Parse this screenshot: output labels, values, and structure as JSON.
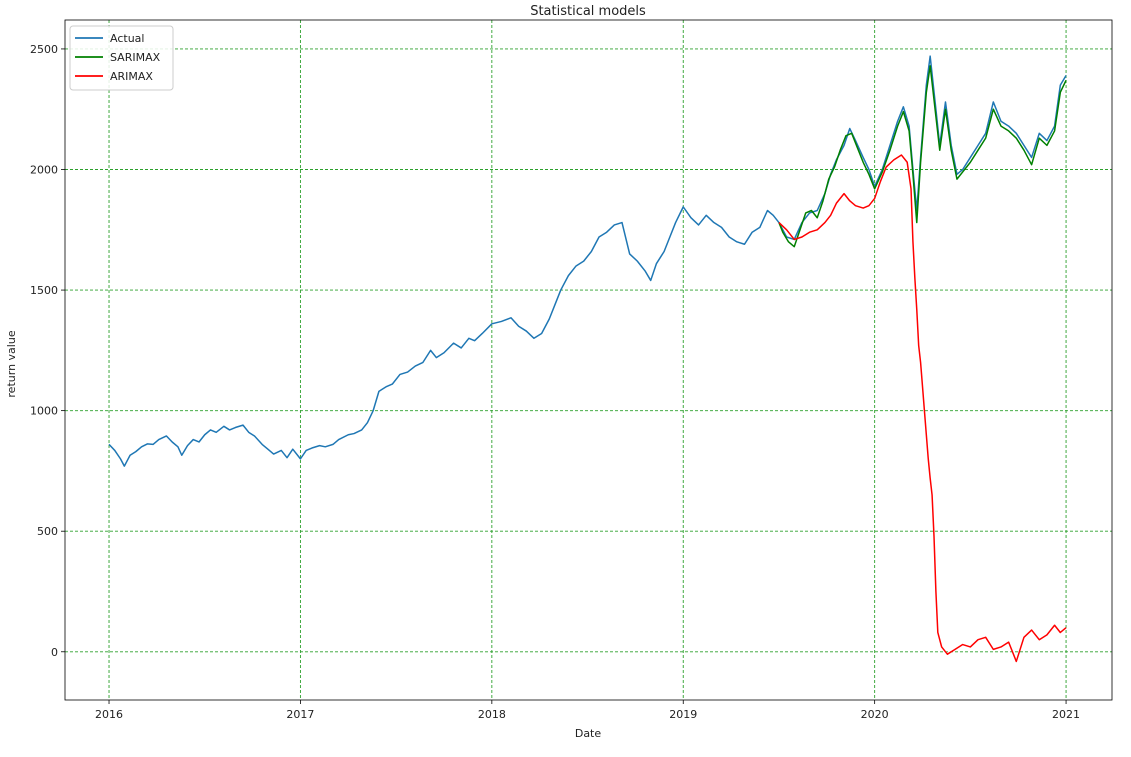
{
  "chart_data": {
    "type": "line",
    "title": "Statistical models",
    "xlabel": "Date",
    "ylabel": "return value",
    "xlim": [
      2015.77,
      2021.24
    ],
    "ylim": [
      -200,
      2620
    ],
    "x_ticks": [
      2016,
      2017,
      2018,
      2019,
      2020,
      2021
    ],
    "x_tick_labels": [
      "2016",
      "2017",
      "2018",
      "2019",
      "2020",
      "2021"
    ],
    "y_ticks": [
      0,
      500,
      1000,
      1500,
      2000,
      2500
    ],
    "y_tick_labels": [
      "0",
      "500",
      "1000",
      "1500",
      "2000",
      "2500"
    ],
    "grid": true,
    "grid_color": "#2ca02c",
    "legend_position": "top-left",
    "series": [
      {
        "name": "Actual",
        "color": "#1f77b4",
        "points": [
          [
            2016.0,
            860
          ],
          [
            2016.03,
            835
          ],
          [
            2016.06,
            800
          ],
          [
            2016.08,
            770
          ],
          [
            2016.11,
            815
          ],
          [
            2016.14,
            830
          ],
          [
            2016.17,
            850
          ],
          [
            2016.2,
            862
          ],
          [
            2016.23,
            860
          ],
          [
            2016.26,
            880
          ],
          [
            2016.3,
            895
          ],
          [
            2016.33,
            870
          ],
          [
            2016.36,
            850
          ],
          [
            2016.38,
            815
          ],
          [
            2016.41,
            855
          ],
          [
            2016.44,
            880
          ],
          [
            2016.47,
            870
          ],
          [
            2016.5,
            900
          ],
          [
            2016.53,
            920
          ],
          [
            2016.56,
            910
          ],
          [
            2016.6,
            935
          ],
          [
            2016.63,
            920
          ],
          [
            2016.66,
            930
          ],
          [
            2016.7,
            940
          ],
          [
            2016.73,
            910
          ],
          [
            2016.76,
            895
          ],
          [
            2016.8,
            860
          ],
          [
            2016.83,
            840
          ],
          [
            2016.86,
            820
          ],
          [
            2016.9,
            835
          ],
          [
            2016.93,
            805
          ],
          [
            2016.96,
            840
          ],
          [
            2017.0,
            800
          ],
          [
            2017.03,
            835
          ],
          [
            2017.06,
            845
          ],
          [
            2017.1,
            855
          ],
          [
            2017.13,
            850
          ],
          [
            2017.17,
            860
          ],
          [
            2017.2,
            880
          ],
          [
            2017.25,
            900
          ],
          [
            2017.28,
            905
          ],
          [
            2017.32,
            920
          ],
          [
            2017.35,
            950
          ],
          [
            2017.38,
            1000
          ],
          [
            2017.41,
            1080
          ],
          [
            2017.45,
            1100
          ],
          [
            2017.48,
            1110
          ],
          [
            2017.52,
            1150
          ],
          [
            2017.56,
            1160
          ],
          [
            2017.6,
            1185
          ],
          [
            2017.64,
            1200
          ],
          [
            2017.68,
            1250
          ],
          [
            2017.71,
            1220
          ],
          [
            2017.75,
            1240
          ],
          [
            2017.8,
            1280
          ],
          [
            2017.84,
            1260
          ],
          [
            2017.88,
            1300
          ],
          [
            2017.91,
            1290
          ],
          [
            2017.95,
            1320
          ],
          [
            2018.0,
            1360
          ],
          [
            2018.05,
            1370
          ],
          [
            2018.1,
            1385
          ],
          [
            2018.14,
            1350
          ],
          [
            2018.18,
            1330
          ],
          [
            2018.22,
            1300
          ],
          [
            2018.26,
            1320
          ],
          [
            2018.3,
            1380
          ],
          [
            2018.33,
            1440
          ],
          [
            2018.36,
            1500
          ],
          [
            2018.4,
            1560
          ],
          [
            2018.44,
            1600
          ],
          [
            2018.48,
            1620
          ],
          [
            2018.52,
            1660
          ],
          [
            2018.56,
            1720
          ],
          [
            2018.6,
            1740
          ],
          [
            2018.64,
            1770
          ],
          [
            2018.68,
            1780
          ],
          [
            2018.72,
            1650
          ],
          [
            2018.76,
            1620
          ],
          [
            2018.8,
            1580
          ],
          [
            2018.83,
            1540
          ],
          [
            2018.86,
            1610
          ],
          [
            2018.9,
            1660
          ],
          [
            2018.93,
            1720
          ],
          [
            2018.96,
            1780
          ],
          [
            2019.0,
            1845
          ],
          [
            2019.04,
            1800
          ],
          [
            2019.08,
            1770
          ],
          [
            2019.12,
            1810
          ],
          [
            2019.16,
            1780
          ],
          [
            2019.2,
            1760
          ],
          [
            2019.24,
            1720
          ],
          [
            2019.28,
            1700
          ],
          [
            2019.32,
            1690
          ],
          [
            2019.36,
            1740
          ],
          [
            2019.4,
            1760
          ],
          [
            2019.44,
            1830
          ],
          [
            2019.47,
            1810
          ],
          [
            2019.5,
            1780
          ],
          [
            2019.54,
            1720
          ],
          [
            2019.58,
            1710
          ],
          [
            2019.62,
            1780
          ],
          [
            2019.66,
            1820
          ],
          [
            2019.7,
            1830
          ],
          [
            2019.74,
            1900
          ],
          [
            2019.77,
            1980
          ],
          [
            2019.8,
            2040
          ],
          [
            2019.84,
            2100
          ],
          [
            2019.87,
            2170
          ],
          [
            2019.9,
            2120
          ],
          [
            2019.94,
            2050
          ],
          [
            2019.97,
            2000
          ],
          [
            2020.0,
            1930
          ],
          [
            2020.04,
            2000
          ],
          [
            2020.08,
            2100
          ],
          [
            2020.12,
            2200
          ],
          [
            2020.15,
            2260
          ],
          [
            2020.18,
            2180
          ],
          [
            2020.2,
            2000
          ],
          [
            2020.22,
            1830
          ],
          [
            2020.24,
            2050
          ],
          [
            2020.27,
            2350
          ],
          [
            2020.29,
            2470
          ],
          [
            2020.32,
            2250
          ],
          [
            2020.34,
            2100
          ],
          [
            2020.37,
            2280
          ],
          [
            2020.4,
            2100
          ],
          [
            2020.43,
            1980
          ],
          [
            2020.46,
            2000
          ],
          [
            2020.5,
            2050
          ],
          [
            2020.54,
            2100
          ],
          [
            2020.58,
            2150
          ],
          [
            2020.62,
            2280
          ],
          [
            2020.66,
            2200
          ],
          [
            2020.7,
            2180
          ],
          [
            2020.74,
            2150
          ],
          [
            2020.78,
            2100
          ],
          [
            2020.82,
            2050
          ],
          [
            2020.86,
            2150
          ],
          [
            2020.9,
            2120
          ],
          [
            2020.94,
            2180
          ],
          [
            2020.97,
            2350
          ],
          [
            2021.0,
            2390
          ]
        ]
      },
      {
        "name": "SARIMAX",
        "color": "#008000",
        "points": [
          [
            2019.5,
            1780
          ],
          [
            2019.52,
            1740
          ],
          [
            2019.55,
            1700
          ],
          [
            2019.58,
            1680
          ],
          [
            2019.61,
            1750
          ],
          [
            2019.64,
            1820
          ],
          [
            2019.67,
            1830
          ],
          [
            2019.7,
            1800
          ],
          [
            2019.73,
            1870
          ],
          [
            2019.76,
            1960
          ],
          [
            2019.79,
            2010
          ],
          [
            2019.82,
            2080
          ],
          [
            2019.85,
            2140
          ],
          [
            2019.88,
            2150
          ],
          [
            2019.91,
            2090
          ],
          [
            2019.94,
            2030
          ],
          [
            2019.97,
            1980
          ],
          [
            2020.0,
            1920
          ],
          [
            2020.04,
            1990
          ],
          [
            2020.08,
            2080
          ],
          [
            2020.12,
            2180
          ],
          [
            2020.15,
            2240
          ],
          [
            2020.18,
            2160
          ],
          [
            2020.2,
            1980
          ],
          [
            2020.22,
            1780
          ],
          [
            2020.24,
            2030
          ],
          [
            2020.27,
            2320
          ],
          [
            2020.29,
            2430
          ],
          [
            2020.32,
            2220
          ],
          [
            2020.34,
            2080
          ],
          [
            2020.37,
            2250
          ],
          [
            2020.4,
            2080
          ],
          [
            2020.43,
            1960
          ],
          [
            2020.46,
            1990
          ],
          [
            2020.5,
            2030
          ],
          [
            2020.54,
            2080
          ],
          [
            2020.58,
            2130
          ],
          [
            2020.62,
            2250
          ],
          [
            2020.66,
            2180
          ],
          [
            2020.7,
            2160
          ],
          [
            2020.74,
            2130
          ],
          [
            2020.78,
            2080
          ],
          [
            2020.82,
            2020
          ],
          [
            2020.86,
            2130
          ],
          [
            2020.9,
            2100
          ],
          [
            2020.94,
            2160
          ],
          [
            2020.97,
            2320
          ],
          [
            2021.0,
            2370
          ]
        ]
      },
      {
        "name": "ARIMAX",
        "color": "#ff0000",
        "points": [
          [
            2019.5,
            1780
          ],
          [
            2019.54,
            1750
          ],
          [
            2019.58,
            1710
          ],
          [
            2019.62,
            1720
          ],
          [
            2019.66,
            1740
          ],
          [
            2019.7,
            1750
          ],
          [
            2019.74,
            1780
          ],
          [
            2019.77,
            1810
          ],
          [
            2019.8,
            1860
          ],
          [
            2019.84,
            1900
          ],
          [
            2019.87,
            1870
          ],
          [
            2019.9,
            1850
          ],
          [
            2019.94,
            1840
          ],
          [
            2019.97,
            1850
          ],
          [
            2020.0,
            1880
          ],
          [
            2020.03,
            1950
          ],
          [
            2020.06,
            2010
          ],
          [
            2020.1,
            2040
          ],
          [
            2020.14,
            2060
          ],
          [
            2020.17,
            2030
          ],
          [
            2020.19,
            1920
          ],
          [
            2020.2,
            1700
          ],
          [
            2020.21,
            1550
          ],
          [
            2020.22,
            1420
          ],
          [
            2020.23,
            1270
          ],
          [
            2020.24,
            1200
          ],
          [
            2020.25,
            1100
          ],
          [
            2020.26,
            1000
          ],
          [
            2020.27,
            900
          ],
          [
            2020.28,
            800
          ],
          [
            2020.29,
            720
          ],
          [
            2020.3,
            650
          ],
          [
            2020.31,
            480
          ],
          [
            2020.32,
            250
          ],
          [
            2020.33,
            80
          ],
          [
            2020.35,
            20
          ],
          [
            2020.38,
            -10
          ],
          [
            2020.42,
            10
          ],
          [
            2020.46,
            30
          ],
          [
            2020.5,
            20
          ],
          [
            2020.54,
            50
          ],
          [
            2020.58,
            60
          ],
          [
            2020.62,
            10
          ],
          [
            2020.66,
            20
          ],
          [
            2020.7,
            40
          ],
          [
            2020.74,
            -40
          ],
          [
            2020.78,
            60
          ],
          [
            2020.82,
            90
          ],
          [
            2020.86,
            50
          ],
          [
            2020.9,
            70
          ],
          [
            2020.94,
            110
          ],
          [
            2020.97,
            80
          ],
          [
            2021.0,
            100
          ]
        ]
      }
    ]
  }
}
